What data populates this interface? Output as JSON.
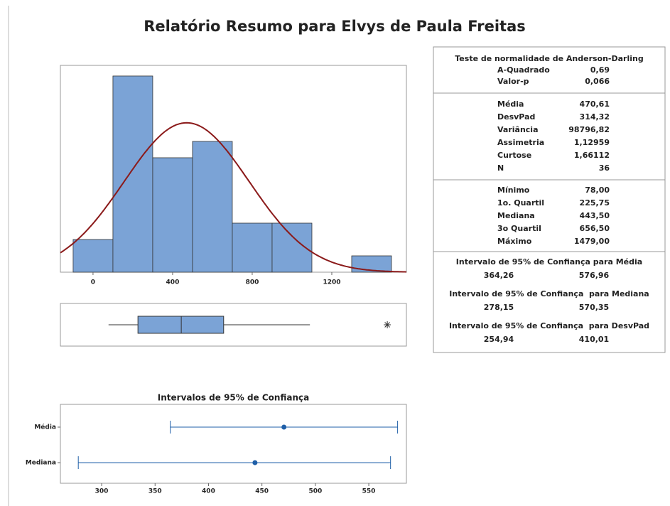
{
  "title": "Relatório Resumo para Elvys de Paula Freitas",
  "chart_data": [
    {
      "type": "histogram",
      "bins": [
        -100,
        100,
        300,
        500,
        700,
        900,
        1100,
        1300,
        1500
      ],
      "counts": [
        2,
        12,
        7,
        8,
        3,
        3,
        0,
        1
      ],
      "color": "#7ba3d6",
      "xlim": [
        -164,
        1575
      ],
      "xticks": [
        0,
        400,
        800,
        1200
      ],
      "ylim": [
        0,
        12.65
      ],
      "curve": {
        "mean": 470.61,
        "sd": 314.32,
        "n": 36,
        "color": "#8b1a1a"
      }
    },
    {
      "type": "boxplot",
      "min": 78,
      "q1": 225.75,
      "median": 443.5,
      "q3": 656.5,
      "whisker_high": 1090,
      "outliers": [
        1479
      ],
      "color": "#7ba3d6",
      "xlim": [
        -164,
        1575
      ]
    },
    {
      "type": "interval",
      "title": "Intervalos de 95% de Confiança",
      "categories": [
        "Média",
        "Mediana"
      ],
      "values": [
        470.61,
        443.5
      ],
      "low": [
        364.26,
        278.15
      ],
      "high": [
        576.96,
        570.35
      ],
      "color": "#1f5fa8",
      "xlim": [
        261.4,
        585.2
      ],
      "xticks": [
        300,
        350,
        400,
        450,
        500,
        550
      ]
    }
  ],
  "summary": {
    "normality": {
      "title": "Teste de normalidade de Anderson-Darling",
      "rows": [
        [
          "A-Quadrado",
          "0,69"
        ],
        [
          "Valor-p",
          "0,066"
        ]
      ]
    },
    "moments": [
      [
        "Média",
        "470,61"
      ],
      [
        "DesvPad",
        "314,32"
      ],
      [
        "Variância",
        "98796,82"
      ],
      [
        "Assimetria",
        "1,12959"
      ],
      [
        "Curtose",
        "1,66112"
      ],
      [
        "N",
        "36"
      ]
    ],
    "quantiles": [
      [
        "Mínimo",
        "78,00"
      ],
      [
        "1o. Quartil",
        "225,75"
      ],
      [
        "Mediana",
        "443,50"
      ],
      [
        "3o Quartil",
        "656,50"
      ],
      [
        "Máximo",
        "1479,00"
      ]
    ],
    "intervals": [
      {
        "title": "Intervalo de 95% de Confiança para Média",
        "low": "364,26",
        "high": "576,96"
      },
      {
        "title": "Intervalo de 95% de Confiança  para Mediana",
        "low": "278,15",
        "high": "570,35"
      },
      {
        "title": "Intervalo de 95% de Confiança  para DesvPad",
        "low": "254,94",
        "high": "410,01"
      }
    ]
  }
}
